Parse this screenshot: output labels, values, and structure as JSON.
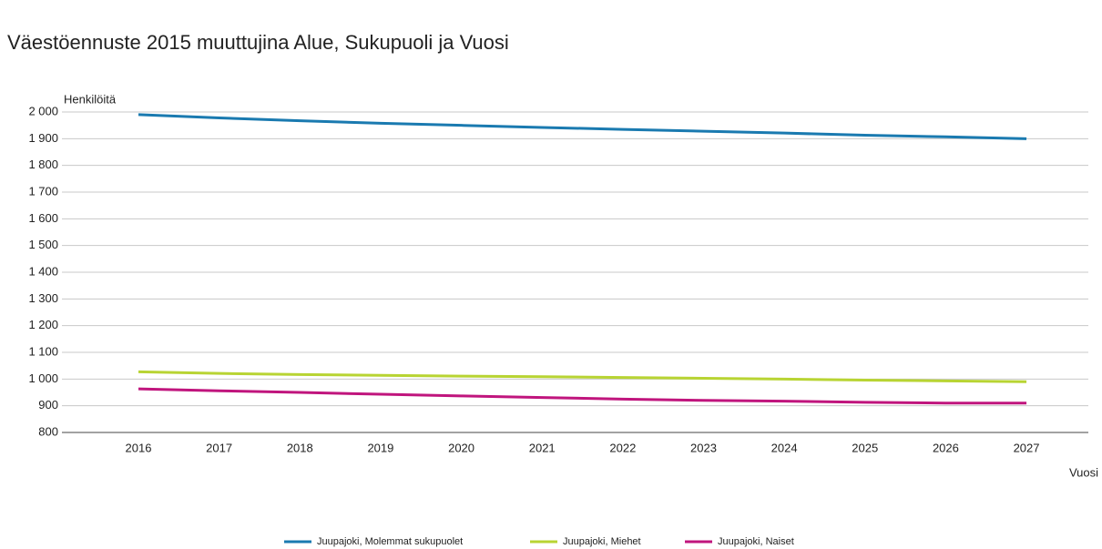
{
  "chart_data": {
    "type": "line",
    "title": "Väestöennuste 2015 muuttujina Alue, Sukupuoli ja Vuosi",
    "y_label": "Henkilöitä",
    "x_label": "Vuosi",
    "categories": [
      "2016",
      "2017",
      "2018",
      "2019",
      "2020",
      "2021",
      "2022",
      "2023",
      "2024",
      "2025",
      "2026",
      "2027"
    ],
    "series": [
      {
        "name": "Juupajoki, Molemmat sukupuolet",
        "color": "#1a7ab0",
        "values": [
          1990,
          1978,
          1967,
          1958,
          1950,
          1942,
          1935,
          1928,
          1921,
          1913,
          1907,
          1900
        ]
      },
      {
        "name": "Juupajoki, Miehet",
        "color": "#b8d433",
        "values": [
          1027,
          1021,
          1017,
          1014,
          1011,
          1009,
          1006,
          1003,
          1000,
          996,
          993,
          990
        ]
      },
      {
        "name": "Juupajoki, Naiset",
        "color": "#c0157d",
        "values": [
          963,
          956,
          950,
          943,
          937,
          931,
          925,
          920,
          917,
          913,
          910,
          910
        ]
      }
    ],
    "ylim": [
      800,
      2000
    ],
    "yticks": [
      800,
      900,
      {
        "value": 1000,
        "label": "1 000"
      },
      {
        "value": 1100,
        "label": "1 100"
      },
      {
        "value": 1200,
        "label": "1 200"
      },
      {
        "value": 1300,
        "label": "1 300"
      },
      {
        "value": 1400,
        "label": "1 400"
      },
      {
        "value": 1500,
        "label": "1 500"
      },
      {
        "value": 1600,
        "label": "1 600"
      },
      {
        "value": 1700,
        "label": "1 700"
      },
      {
        "value": 1800,
        "label": "1 800"
      },
      {
        "value": 1900,
        "label": "1 900"
      },
      {
        "value": 2000,
        "label": "2 000"
      }
    ],
    "grid": true,
    "legend": "bottom"
  }
}
